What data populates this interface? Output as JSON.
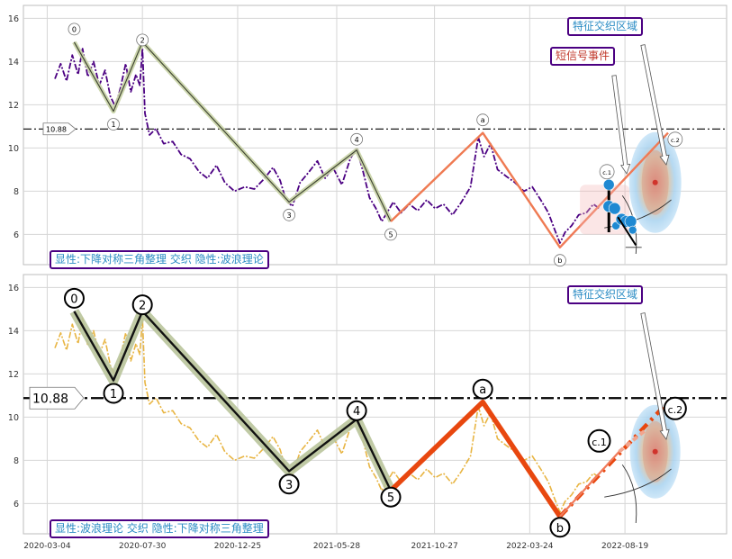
{
  "chart_data": [
    {
      "type": "line",
      "panel": "top",
      "ylim": [
        4.6,
        16.6
      ],
      "yticks": [
        6,
        8,
        10,
        12,
        14,
        16
      ],
      "grid": true,
      "reference_line": {
        "value": 10.88,
        "label": "10.88"
      },
      "price_color": "#4b0082",
      "price_series": [
        [
          "2020-03-16",
          13.2
        ],
        [
          "2020-03-25",
          13.9
        ],
        [
          "2020-04-03",
          13.1
        ],
        [
          "2020-04-12",
          14.3
        ],
        [
          "2020-04-21",
          13.4
        ],
        [
          "2020-04-28",
          14.6
        ],
        [
          "2020-05-06",
          13.3
        ],
        [
          "2020-05-15",
          14.0
        ],
        [
          "2020-05-24",
          12.9
        ],
        [
          "2020-06-02",
          13.6
        ],
        [
          "2020-06-10",
          12.4
        ],
        [
          "2020-06-18",
          11.9
        ],
        [
          "2020-06-26",
          12.8
        ],
        [
          "2020-07-04",
          13.9
        ],
        [
          "2020-07-12",
          12.6
        ],
        [
          "2020-07-20",
          13.4
        ],
        [
          "2020-07-26",
          12.9
        ],
        [
          "2020-07-30",
          14.6
        ],
        [
          "2020-08-03",
          11.6
        ],
        [
          "2020-08-10",
          10.6
        ],
        [
          "2020-08-20",
          10.9
        ],
        [
          "2020-09-01",
          10.2
        ],
        [
          "2020-09-15",
          10.3
        ],
        [
          "2020-09-28",
          9.7
        ],
        [
          "2020-10-12",
          9.5
        ],
        [
          "2020-10-26",
          8.9
        ],
        [
          "2020-11-08",
          8.6
        ],
        [
          "2020-11-22",
          9.2
        ],
        [
          "2020-12-05",
          8.4
        ],
        [
          "2020-12-20",
          8.0
        ],
        [
          "2021-01-05",
          8.2
        ],
        [
          "2021-01-20",
          8.1
        ],
        [
          "2021-02-05",
          8.6
        ],
        [
          "2021-02-18",
          9.1
        ],
        [
          "2021-03-01",
          8.5
        ],
        [
          "2021-03-10",
          7.6
        ],
        [
          "2021-03-20",
          7.3
        ],
        [
          "2021-04-01",
          8.4
        ],
        [
          "2021-04-15",
          8.9
        ],
        [
          "2021-04-28",
          9.4
        ],
        [
          "2021-05-10",
          8.6
        ],
        [
          "2021-05-22",
          9.1
        ],
        [
          "2021-06-05",
          8.3
        ],
        [
          "2021-06-18",
          9.5
        ],
        [
          "2021-06-28",
          10.0
        ],
        [
          "2021-07-08",
          8.9
        ],
        [
          "2021-07-18",
          7.7
        ],
        [
          "2021-07-28",
          7.2
        ],
        [
          "2021-08-06",
          6.6
        ],
        [
          "2021-08-14",
          7.0
        ],
        [
          "2021-08-24",
          7.5
        ],
        [
          "2021-09-05",
          7.0
        ],
        [
          "2021-09-18",
          7.4
        ],
        [
          "2021-10-01",
          7.1
        ],
        [
          "2021-10-15",
          7.6
        ],
        [
          "2021-10-28",
          7.2
        ],
        [
          "2021-11-10",
          7.4
        ],
        [
          "2021-11-24",
          6.9
        ],
        [
          "2021-12-08",
          7.5
        ],
        [
          "2021-12-22",
          8.2
        ],
        [
          "2022-01-03",
          10.5
        ],
        [
          "2022-01-12",
          9.6
        ],
        [
          "2022-01-22",
          10.2
        ],
        [
          "2022-02-02",
          9.0
        ],
        [
          "2022-02-15",
          8.7
        ],
        [
          "2022-03-01",
          8.4
        ],
        [
          "2022-03-15",
          8.0
        ],
        [
          "2022-03-28",
          8.2
        ],
        [
          "2022-04-10",
          7.6
        ],
        [
          "2022-04-22",
          7.0
        ],
        [
          "2022-05-02",
          6.2
        ],
        [
          "2022-05-10",
          5.6
        ],
        [
          "2022-05-18",
          6.1
        ],
        [
          "2022-05-28",
          6.4
        ],
        [
          "2022-06-08",
          6.9
        ],
        [
          "2022-06-20",
          7.0
        ],
        [
          "2022-07-01",
          7.4
        ],
        [
          "2022-07-10",
          7.2
        ]
      ],
      "wave_lines": [
        {
          "style": "impulse",
          "color": "#3a3f2e",
          "halo": "#c6d1a4",
          "points": [
            [
              "2020-04-15",
              14.9
            ],
            [
              "2020-06-15",
              11.7
            ],
            [
              "2020-07-30",
              14.9
            ],
            [
              "2021-03-15",
              7.5
            ],
            [
              "2021-06-28",
              9.9
            ],
            [
              "2021-08-20",
              6.6
            ]
          ]
        },
        {
          "style": "corrective",
          "color": "#ef7a52",
          "points": [
            [
              "2021-08-20",
              6.6
            ],
            [
              "2022-01-10",
              10.7
            ],
            [
              "2022-05-10",
              5.4
            ],
            [
              "2022-10-25",
              10.7
            ]
          ]
        }
      ],
      "wave_labels": [
        {
          "text": "0",
          "x": "2020-04-15",
          "y": 15.5
        },
        {
          "text": "1",
          "x": "2020-06-15",
          "y": 11.1
        },
        {
          "text": "2",
          "x": "2020-07-30",
          "y": 15.0
        },
        {
          "text": "3",
          "x": "2021-03-15",
          "y": 6.9
        },
        {
          "text": "4",
          "x": "2021-06-28",
          "y": 10.4
        },
        {
          "text": "5",
          "x": "2021-08-20",
          "y": 6.0
        },
        {
          "text": "a",
          "x": "2022-01-10",
          "y": 11.3
        },
        {
          "text": "b",
          "x": "2022-05-10",
          "y": 4.8
        },
        {
          "text": "c.1",
          "x": "2022-07-22",
          "y": 8.9
        },
        {
          "text": "c.2",
          "x": "2022-11-05",
          "y": 10.4
        }
      ],
      "signal_points": [
        [
          "2022-07-25",
          8.3
        ],
        [
          "2022-07-25",
          7.3
        ],
        [
          "2022-08-03",
          7.2
        ],
        [
          "2022-08-05",
          6.4
        ],
        [
          "2022-08-14",
          6.7
        ],
        [
          "2022-08-21",
          6.6
        ],
        [
          "2022-08-28",
          6.6
        ],
        [
          "2022-08-31",
          6.2
        ]
      ],
      "callouts": [
        {
          "text": "特征交织区域",
          "color": "#2b8cc4"
        },
        {
          "text": "短信号事件",
          "color": "#c0392b"
        }
      ],
      "caption": "显性:下降对称三角整理 交织 隐性:波浪理论"
    },
    {
      "type": "line",
      "panel": "bottom",
      "ylim": [
        4.6,
        16.6
      ],
      "yticks": [
        6,
        8,
        10,
        12,
        14,
        16
      ],
      "grid": true,
      "reference_line": {
        "value": 10.88,
        "label": "10.88"
      },
      "price_color": "#e5ad2f",
      "xticks": [
        "2020-03-04",
        "2020-07-30",
        "2020-12-25",
        "2021-05-28",
        "2021-10-27",
        "2022-03-24",
        "2022-08-19"
      ],
      "wave_lines": [
        {
          "style": "impulse",
          "color": "#111111",
          "halo": "#b9c49b",
          "points": [
            [
              "2020-04-15",
              14.9
            ],
            [
              "2020-06-15",
              11.7
            ],
            [
              "2020-07-30",
              14.9
            ],
            [
              "2021-03-15",
              7.5
            ],
            [
              "2021-06-28",
              9.9
            ],
            [
              "2021-08-20",
              6.6
            ]
          ]
        },
        {
          "style": "corrective",
          "color": "#e8470f",
          "points": [
            [
              "2021-08-20",
              6.6
            ],
            [
              "2022-01-10",
              10.7
            ],
            [
              "2022-05-10",
              5.4
            ]
          ]
        }
      ],
      "wave_labels": [
        {
          "text": "0",
          "x": "2020-04-15",
          "y": 15.5
        },
        {
          "text": "1",
          "x": "2020-06-15",
          "y": 11.1
        },
        {
          "text": "2",
          "x": "2020-07-30",
          "y": 15.2
        },
        {
          "text": "3",
          "x": "2021-03-15",
          "y": 6.9
        },
        {
          "text": "4",
          "x": "2021-06-28",
          "y": 10.3
        },
        {
          "text": "5",
          "x": "2021-08-20",
          "y": 6.3
        },
        {
          "text": "a",
          "x": "2022-01-10",
          "y": 11.3
        },
        {
          "text": "b",
          "x": "2022-05-10",
          "y": 4.9
        },
        {
          "text": "c.1",
          "x": "2022-07-10",
          "y": 8.9
        },
        {
          "text": "c.2",
          "x": "2022-11-05",
          "y": 10.4
        }
      ],
      "callouts": [
        {
          "text": "特征交织区域",
          "color": "#2b8cc4"
        }
      ],
      "caption": "显性:波浪理论 交织 隐性:下降对称三角整理"
    }
  ]
}
